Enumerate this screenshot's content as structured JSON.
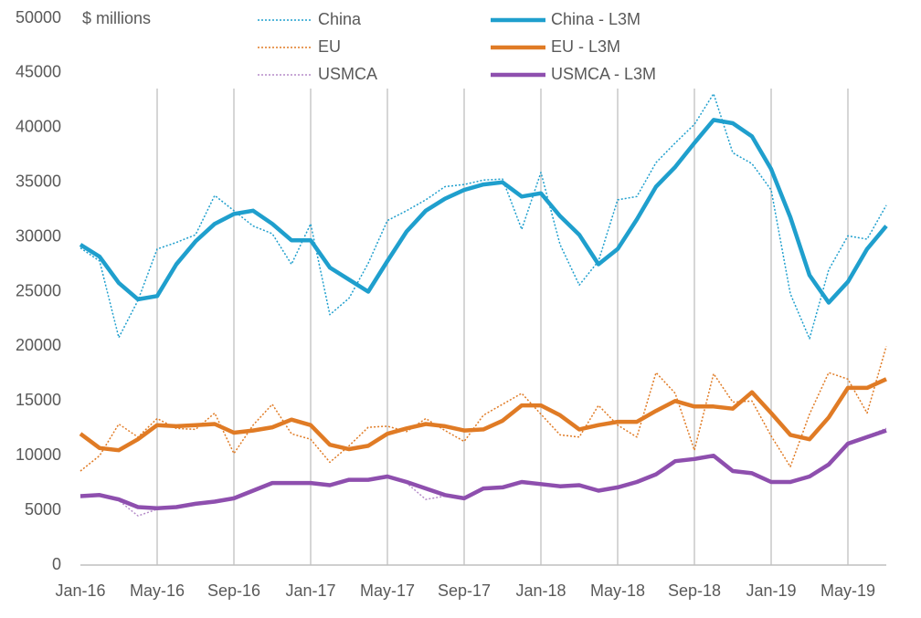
{
  "chart_data": {
    "type": "line",
    "annotation": "$ millions",
    "categories": [
      "Jan-16",
      null,
      null,
      null,
      "May-16",
      null,
      null,
      null,
      "Sep-16",
      null,
      null,
      null,
      "Jan-17",
      null,
      null,
      null,
      "May-17",
      null,
      null,
      null,
      "Sep-17",
      null,
      null,
      null,
      "Jan-18",
      null,
      null,
      null,
      "May-18",
      null,
      null,
      null,
      "Sep-18",
      null,
      null,
      null,
      "Jan-19",
      null,
      null,
      null,
      "May-19",
      null,
      null
    ],
    "ylim": [
      0,
      50000
    ],
    "yticks": [
      0,
      5000,
      10000,
      15000,
      20000,
      25000,
      30000,
      35000,
      40000,
      45000,
      50000
    ],
    "grid": "x",
    "series": [
      {
        "name": "China",
        "color": "#1f9fcd",
        "style": "dotted",
        "values": [
          29000,
          27800,
          20800,
          24200,
          28900,
          29500,
          30200,
          33800,
          32400,
          31000,
          30300,
          27500,
          31200,
          22900,
          24400,
          27600,
          31500,
          32400,
          33400,
          34600,
          34800,
          35200,
          35300,
          30700,
          35900,
          29300,
          25600,
          27800,
          33400,
          33700,
          36800,
          38600,
          40300,
          43100,
          37700,
          36700,
          34300,
          24800,
          20700,
          27000,
          30100,
          29800,
          32900
        ]
      },
      {
        "name": "EU",
        "color": "#e07b25",
        "style": "dotted",
        "values": [
          8600,
          10000,
          12900,
          11700,
          13400,
          12500,
          12400,
          13900,
          10200,
          12800,
          14700,
          12000,
          11500,
          9400,
          10900,
          12600,
          12700,
          12200,
          13400,
          12300,
          11300,
          13700,
          14700,
          15700,
          13800,
          11900,
          11700,
          14600,
          12800,
          11700,
          17600,
          15700,
          10500,
          17500,
          14900,
          15000,
          11800,
          9000,
          13800,
          17600,
          17000,
          13900,
          20000
        ]
      },
      {
        "name": "USMCA",
        "color": "#b58cc9",
        "style": "dotted",
        "values": [
          6200,
          6300,
          5900,
          4500,
          5100,
          5400,
          5700,
          5900,
          6200,
          6900,
          7600,
          7400,
          7500,
          7300,
          7900,
          7700,
          8200,
          7500,
          6000,
          6300,
          6000,
          7100,
          7100,
          7700,
          7400,
          7100,
          7300,
          6700,
          7100,
          7700,
          8400,
          9600,
          9700,
          10100,
          8500,
          8300,
          7500,
          7500,
          8000,
          9300,
          11200,
          11800,
          12500
        ]
      },
      {
        "name": "China - L3M",
        "color": "#1f9fcd",
        "style": "solid",
        "values": [
          29300,
          28200,
          25800,
          24300,
          24600,
          27500,
          29600,
          31200,
          32100,
          32400,
          31200,
          29700,
          29700,
          27200,
          26100,
          25000,
          27800,
          30500,
          32400,
          33500,
          34300,
          34800,
          35000,
          33700,
          34000,
          31900,
          30200,
          27500,
          28900,
          31600,
          34600,
          36400,
          38600,
          40700,
          40400,
          39200,
          36200,
          31800,
          26500,
          24000,
          25900,
          28900,
          31000
        ]
      },
      {
        "name": "EU - L3M",
        "color": "#e07b25",
        "style": "solid",
        "values": [
          12000,
          10700,
          10500,
          11500,
          12800,
          12700,
          12800,
          12900,
          12100,
          12300,
          12600,
          13300,
          12800,
          11000,
          10600,
          10900,
          12000,
          12500,
          12900,
          12700,
          12300,
          12400,
          13200,
          14600,
          14600,
          13700,
          12400,
          12800,
          13100,
          13100,
          14100,
          15000,
          14500,
          14500,
          14300,
          15800,
          13900,
          11900,
          11500,
          13500,
          16200,
          16200,
          17000
        ]
      },
      {
        "name": "USMCA - L3M",
        "color": "#8e4fae",
        "style": "solid",
        "values": [
          6300,
          6400,
          6000,
          5300,
          5200,
          5300,
          5600,
          5800,
          6100,
          6800,
          7500,
          7500,
          7500,
          7300,
          7800,
          7800,
          8100,
          7600,
          7000,
          6400,
          6100,
          7000,
          7100,
          7600,
          7400,
          7200,
          7300,
          6800,
          7100,
          7600,
          8300,
          9500,
          9700,
          10000,
          8600,
          8400,
          7600,
          7600,
          8100,
          9200,
          11100,
          11700,
          12300
        ]
      }
    ]
  }
}
